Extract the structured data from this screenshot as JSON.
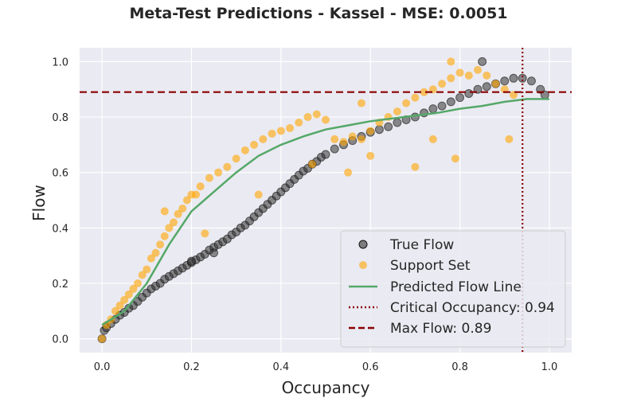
{
  "chart_data": {
    "type": "scatter",
    "title": "Meta-Test Predictions - Kassel - MSE: 0.0051",
    "xlabel": "Occupancy",
    "ylabel": "Flow",
    "xlim": [
      -0.05,
      1.05
    ],
    "ylim": [
      -0.05,
      1.05
    ],
    "xticks": [
      "0.0",
      "0.2",
      "0.4",
      "0.6",
      "0.8",
      "1.0"
    ],
    "yticks": [
      "0.0",
      "0.2",
      "0.4",
      "0.6",
      "0.8",
      "1.0"
    ],
    "grid": true,
    "legend_position": "lower-right",
    "colors": {
      "true_flow": "#333333",
      "support_set": "#ffa500",
      "predicted": "#55a868",
      "critical": "#8b0000",
      "max_flow": "#8b0000",
      "background": "#eaeaf2"
    },
    "series": [
      {
        "name": "True Flow",
        "style": "scatter",
        "points": [
          [
            0.0,
            0.0
          ],
          [
            0.005,
            0.03
          ],
          [
            0.01,
            0.04
          ],
          [
            0.02,
            0.055
          ],
          [
            0.03,
            0.07
          ],
          [
            0.04,
            0.085
          ],
          [
            0.05,
            0.095
          ],
          [
            0.06,
            0.11
          ],
          [
            0.07,
            0.12
          ],
          [
            0.08,
            0.135
          ],
          [
            0.09,
            0.15
          ],
          [
            0.1,
            0.165
          ],
          [
            0.11,
            0.18
          ],
          [
            0.12,
            0.19
          ],
          [
            0.13,
            0.2
          ],
          [
            0.14,
            0.215
          ],
          [
            0.15,
            0.225
          ],
          [
            0.16,
            0.235
          ],
          [
            0.17,
            0.245
          ],
          [
            0.18,
            0.255
          ],
          [
            0.19,
            0.265
          ],
          [
            0.2,
            0.275
          ],
          [
            0.21,
            0.285
          ],
          [
            0.22,
            0.295
          ],
          [
            0.23,
            0.305
          ],
          [
            0.24,
            0.32
          ],
          [
            0.25,
            0.33
          ],
          [
            0.26,
            0.34
          ],
          [
            0.27,
            0.35
          ],
          [
            0.28,
            0.36
          ],
          [
            0.29,
            0.375
          ],
          [
            0.3,
            0.385
          ],
          [
            0.31,
            0.4
          ],
          [
            0.32,
            0.41
          ],
          [
            0.33,
            0.425
          ],
          [
            0.34,
            0.44
          ],
          [
            0.35,
            0.455
          ],
          [
            0.36,
            0.47
          ],
          [
            0.37,
            0.485
          ],
          [
            0.38,
            0.5
          ],
          [
            0.39,
            0.515
          ],
          [
            0.4,
            0.53
          ],
          [
            0.41,
            0.545
          ],
          [
            0.42,
            0.56
          ],
          [
            0.43,
            0.575
          ],
          [
            0.44,
            0.59
          ],
          [
            0.45,
            0.605
          ],
          [
            0.46,
            0.615
          ],
          [
            0.47,
            0.63
          ],
          [
            0.48,
            0.64
          ],
          [
            0.49,
            0.655
          ],
          [
            0.5,
            0.665
          ],
          [
            0.52,
            0.685
          ],
          [
            0.54,
            0.7
          ],
          [
            0.56,
            0.715
          ],
          [
            0.58,
            0.73
          ],
          [
            0.6,
            0.745
          ],
          [
            0.62,
            0.755
          ],
          [
            0.64,
            0.765
          ],
          [
            0.66,
            0.78
          ],
          [
            0.68,
            0.79
          ],
          [
            0.7,
            0.8
          ],
          [
            0.72,
            0.815
          ],
          [
            0.74,
            0.83
          ],
          [
            0.76,
            0.84
          ],
          [
            0.78,
            0.855
          ],
          [
            0.8,
            0.87
          ],
          [
            0.82,
            0.885
          ],
          [
            0.84,
            0.9
          ],
          [
            0.86,
            0.91
          ],
          [
            0.88,
            0.92
          ],
          [
            0.9,
            0.93
          ],
          [
            0.92,
            0.94
          ],
          [
            0.94,
            0.94
          ],
          [
            0.96,
            0.93
          ],
          [
            0.98,
            0.9
          ],
          [
            0.99,
            0.88
          ],
          [
            0.85,
            1.0
          ],
          [
            0.2,
            0.28
          ],
          [
            0.25,
            0.31
          ]
        ]
      },
      {
        "name": "Support Set",
        "style": "scatter",
        "points": [
          [
            0.0,
            0.0
          ],
          [
            0.01,
            0.05
          ],
          [
            0.02,
            0.07
          ],
          [
            0.03,
            0.1
          ],
          [
            0.04,
            0.12
          ],
          [
            0.05,
            0.14
          ],
          [
            0.06,
            0.16
          ],
          [
            0.07,
            0.18
          ],
          [
            0.08,
            0.2
          ],
          [
            0.09,
            0.23
          ],
          [
            0.1,
            0.25
          ],
          [
            0.11,
            0.29
          ],
          [
            0.12,
            0.31
          ],
          [
            0.13,
            0.34
          ],
          [
            0.14,
            0.37
          ],
          [
            0.15,
            0.4
          ],
          [
            0.16,
            0.42
          ],
          [
            0.17,
            0.45
          ],
          [
            0.18,
            0.47
          ],
          [
            0.19,
            0.5
          ],
          [
            0.2,
            0.52
          ],
          [
            0.22,
            0.55
          ],
          [
            0.24,
            0.58
          ],
          [
            0.26,
            0.6
          ],
          [
            0.28,
            0.62
          ],
          [
            0.3,
            0.65
          ],
          [
            0.32,
            0.68
          ],
          [
            0.34,
            0.7
          ],
          [
            0.36,
            0.72
          ],
          [
            0.38,
            0.74
          ],
          [
            0.4,
            0.75
          ],
          [
            0.42,
            0.76
          ],
          [
            0.44,
            0.78
          ],
          [
            0.46,
            0.8
          ],
          [
            0.48,
            0.81
          ],
          [
            0.5,
            0.79
          ],
          [
            0.52,
            0.72
          ],
          [
            0.54,
            0.71
          ],
          [
            0.56,
            0.73
          ],
          [
            0.58,
            0.72
          ],
          [
            0.6,
            0.75
          ],
          [
            0.62,
            0.78
          ],
          [
            0.64,
            0.8
          ],
          [
            0.66,
            0.82
          ],
          [
            0.68,
            0.85
          ],
          [
            0.7,
            0.87
          ],
          [
            0.72,
            0.89
          ],
          [
            0.74,
            0.9
          ],
          [
            0.76,
            0.92
          ],
          [
            0.78,
            0.94
          ],
          [
            0.8,
            0.96
          ],
          [
            0.82,
            0.95
          ],
          [
            0.84,
            0.97
          ],
          [
            0.86,
            0.95
          ],
          [
            0.88,
            0.92
          ],
          [
            0.9,
            0.9
          ],
          [
            0.92,
            0.88
          ],
          [
            0.78,
            1.0
          ],
          [
            0.14,
            0.46
          ],
          [
            0.21,
            0.52
          ],
          [
            0.55,
            0.6
          ],
          [
            0.6,
            0.66
          ],
          [
            0.7,
            0.62
          ],
          [
            0.74,
            0.72
          ],
          [
            0.79,
            0.65
          ],
          [
            0.91,
            0.72
          ],
          [
            0.23,
            0.38
          ],
          [
            0.35,
            0.52
          ],
          [
            0.47,
            0.63
          ],
          [
            0.58,
            0.85
          ]
        ]
      },
      {
        "name": "Predicted Flow Line",
        "style": "line",
        "points": [
          [
            0.0,
            0.05
          ],
          [
            0.05,
            0.1
          ],
          [
            0.1,
            0.2
          ],
          [
            0.15,
            0.34
          ],
          [
            0.2,
            0.46
          ],
          [
            0.25,
            0.53
          ],
          [
            0.3,
            0.6
          ],
          [
            0.35,
            0.66
          ],
          [
            0.4,
            0.7
          ],
          [
            0.45,
            0.73
          ],
          [
            0.5,
            0.755
          ],
          [
            0.55,
            0.77
          ],
          [
            0.6,
            0.785
          ],
          [
            0.65,
            0.795
          ],
          [
            0.7,
            0.805
          ],
          [
            0.75,
            0.815
          ],
          [
            0.8,
            0.83
          ],
          [
            0.85,
            0.84
          ],
          [
            0.9,
            0.855
          ],
          [
            0.95,
            0.865
          ],
          [
            1.0,
            0.865
          ]
        ]
      },
      {
        "name": "Critical Occupancy: 0.94",
        "style": "vline",
        "x": 0.94
      },
      {
        "name": "Max Flow: 0.89",
        "style": "hline",
        "y": 0.89
      }
    ]
  }
}
